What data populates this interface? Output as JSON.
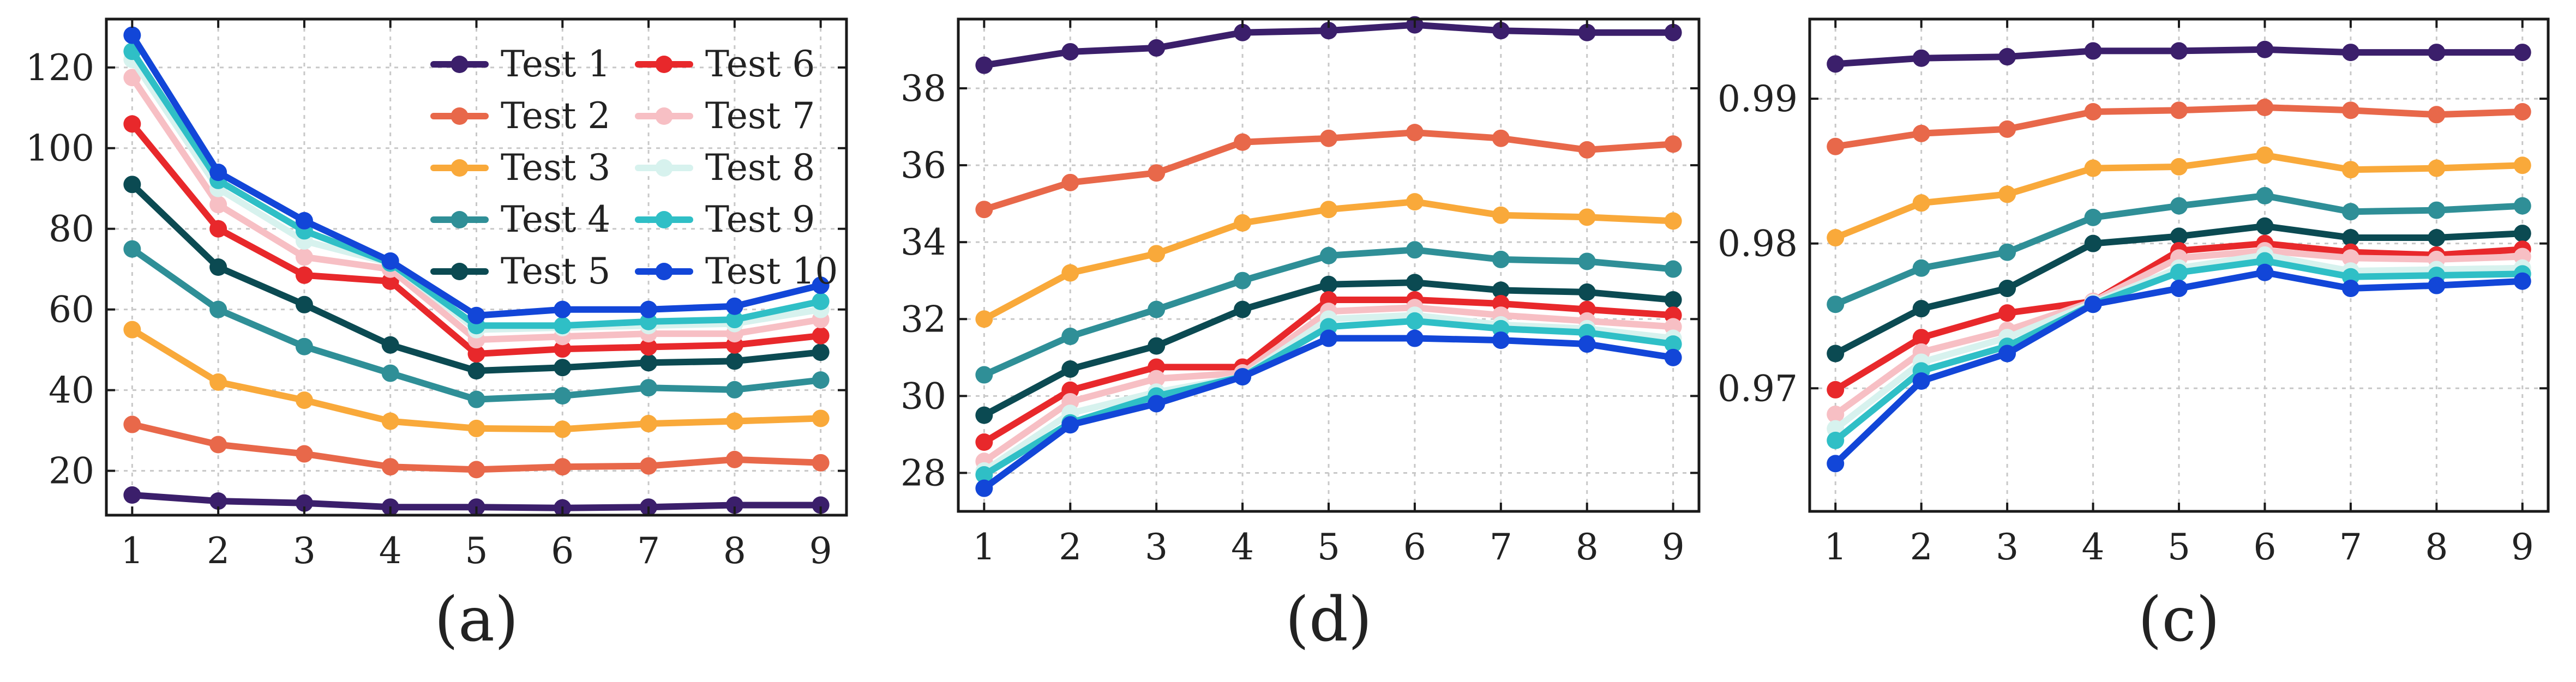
{
  "chart_data": [
    {
      "type": "line",
      "panel_label": "(a)",
      "x": [
        1,
        2,
        3,
        4,
        5,
        6,
        7,
        8,
        9
      ],
      "xticks": [
        "1",
        "2",
        "3",
        "4",
        "5",
        "6",
        "7",
        "8",
        "9"
      ],
      "xlim": [
        0.7,
        9.3
      ],
      "ylim": [
        9,
        132
      ],
      "yticks": [
        20,
        40,
        60,
        80,
        100,
        120
      ],
      "ytick_labels": [
        "20",
        "40",
        "60",
        "80",
        "100",
        "120"
      ],
      "ytick_side": "left",
      "grid": true,
      "legend": {
        "placement": "top-right",
        "columns": 2
      },
      "series": [
        {
          "name": "Test 1",
          "color": "#3b1f6b",
          "values": [
            14,
            12.5,
            12,
            11,
            11,
            10.8,
            11,
            11.5,
            11.5
          ]
        },
        {
          "name": "Test 2",
          "color": "#e8684a",
          "values": [
            31.5,
            26.5,
            24.2,
            21,
            20.3,
            21,
            21.2,
            22.8,
            22
          ]
        },
        {
          "name": "Test 3",
          "color": "#f9a93a",
          "values": [
            55,
            42,
            37.5,
            32.3,
            30.5,
            30.3,
            31.7,
            32.3,
            33
          ]
        },
        {
          "name": "Test 4",
          "color": "#2f8f97",
          "values": [
            75,
            60,
            50.8,
            44.2,
            37.7,
            38.6,
            40.6,
            40.1,
            42.5
          ]
        },
        {
          "name": "Test 5",
          "color": "#0b4a52",
          "values": [
            91,
            70.5,
            61.2,
            51.2,
            44.8,
            45.6,
            46.8,
            47.2,
            49.4
          ]
        },
        {
          "name": "Test 6",
          "color": "#e8282b",
          "values": [
            106,
            80,
            68.5,
            67,
            49,
            50.2,
            50.7,
            51.2,
            53.5
          ]
        },
        {
          "name": "Test 7",
          "color": "#f7bfc4",
          "values": [
            117.5,
            86,
            73,
            70,
            52.5,
            53.3,
            54,
            54,
            57.5
          ]
        },
        {
          "name": "Test 8",
          "color": "#d7f2ee",
          "values": [
            122,
            90,
            77,
            71.5,
            55,
            55.5,
            56,
            56.5,
            60
          ]
        },
        {
          "name": "Test 9",
          "color": "#2fbfc6",
          "values": [
            124,
            92,
            79.5,
            71.5,
            56,
            56,
            57,
            57.5,
            62
          ]
        },
        {
          "name": "Test 10",
          "color": "#1246d8",
          "values": [
            128,
            94,
            82,
            72,
            58.5,
            60,
            60,
            60.8,
            66
          ]
        }
      ]
    },
    {
      "type": "line",
      "panel_label": "(d)",
      "x": [
        1,
        2,
        3,
        4,
        5,
        6,
        7,
        8,
        9
      ],
      "xticks": [
        "1",
        "2",
        "3",
        "4",
        "5",
        "6",
        "7",
        "8",
        "9"
      ],
      "xlim": [
        0.7,
        9.3
      ],
      "ylim": [
        27,
        39.8
      ],
      "yticks": [
        28,
        30,
        32,
        34,
        36,
        38
      ],
      "ytick_labels": [
        "28",
        "30",
        "32",
        "34",
        "36",
        "38"
      ],
      "ytick_side": "left",
      "grid": true,
      "series": [
        {
          "name": "Test 1",
          "color": "#3b1f6b",
          "values": [
            38.6,
            38.95,
            39.05,
            39.45,
            39.5,
            39.65,
            39.5,
            39.45,
            39.45
          ]
        },
        {
          "name": "Test 2",
          "color": "#e8684a",
          "values": [
            34.85,
            35.55,
            35.8,
            36.6,
            36.7,
            36.85,
            36.7,
            36.4,
            36.55
          ]
        },
        {
          "name": "Test 3",
          "color": "#f9a93a",
          "values": [
            32,
            33.2,
            33.7,
            34.5,
            34.85,
            35.05,
            34.7,
            34.65,
            34.55
          ]
        },
        {
          "name": "Test 4",
          "color": "#2f8f97",
          "values": [
            30.55,
            31.55,
            32.25,
            33,
            33.65,
            33.8,
            33.55,
            33.5,
            33.3
          ]
        },
        {
          "name": "Test 5",
          "color": "#0b4a52",
          "values": [
            29.5,
            30.7,
            31.3,
            32.25,
            32.9,
            32.95,
            32.75,
            32.7,
            32.5
          ]
        },
        {
          "name": "Test 6",
          "color": "#e8282b",
          "values": [
            28.8,
            30.15,
            30.75,
            30.75,
            32.5,
            32.5,
            32.4,
            32.25,
            32.1
          ]
        },
        {
          "name": "Test 7",
          "color": "#f7bfc4",
          "values": [
            28.3,
            29.85,
            30.45,
            30.6,
            32.2,
            32.3,
            32.1,
            31.95,
            31.8
          ]
        },
        {
          "name": "Test 8",
          "color": "#d7f2ee",
          "values": [
            28.05,
            29.55,
            30.1,
            30.5,
            32.0,
            32.1,
            31.85,
            31.75,
            31.5
          ]
        },
        {
          "name": "Test 9",
          "color": "#2fbfc6",
          "values": [
            27.95,
            29.3,
            30.0,
            30.5,
            31.8,
            31.95,
            31.75,
            31.65,
            31.35
          ]
        },
        {
          "name": "Test 10",
          "color": "#1246d8",
          "values": [
            27.6,
            29.25,
            29.8,
            30.5,
            31.5,
            31.5,
            31.45,
            31.35,
            31.0
          ]
        }
      ]
    },
    {
      "type": "line",
      "panel_label": "(c)",
      "x": [
        1,
        2,
        3,
        4,
        5,
        6,
        7,
        8,
        9
      ],
      "xticks": [
        "1",
        "2",
        "3",
        "4",
        "5",
        "6",
        "7",
        "8",
        "9"
      ],
      "xlim": [
        0.7,
        9.3
      ],
      "ylim": [
        0.9615,
        0.9955
      ],
      "yticks": [
        0.97,
        0.98,
        0.99
      ],
      "ytick_labels": [
        "0.97",
        "0.98",
        "0.99"
      ],
      "ytick_side": "left",
      "grid": true,
      "series": [
        {
          "name": "Test 1",
          "color": "#3b1f6b",
          "values": [
            0.9924,
            0.9928,
            0.9929,
            0.9933,
            0.9933,
            0.9934,
            0.9932,
            0.9932,
            0.9932
          ]
        },
        {
          "name": "Test 2",
          "color": "#e8684a",
          "values": [
            0.9867,
            0.9876,
            0.9879,
            0.9891,
            0.9892,
            0.9894,
            0.9892,
            0.9889,
            0.9891
          ]
        },
        {
          "name": "Test 3",
          "color": "#f9a93a",
          "values": [
            0.9804,
            0.9828,
            0.9834,
            0.9852,
            0.9853,
            0.9861,
            0.9851,
            0.9852,
            0.9854
          ]
        },
        {
          "name": "Test 4",
          "color": "#2f8f97",
          "values": [
            0.9758,
            0.9783,
            0.9794,
            0.9818,
            0.9826,
            0.9833,
            0.9822,
            0.9823,
            0.9826
          ]
        },
        {
          "name": "Test 5",
          "color": "#0b4a52",
          "values": [
            0.9724,
            0.9755,
            0.9769,
            0.98,
            0.9805,
            0.9812,
            0.9804,
            0.9804,
            0.9807
          ]
        },
        {
          "name": "Test 6",
          "color": "#e8282b",
          "values": [
            0.9699,
            0.9735,
            0.9752,
            0.976,
            0.9795,
            0.98,
            0.9794,
            0.9792,
            0.9796
          ]
        },
        {
          "name": "Test 7",
          "color": "#f7bfc4",
          "values": [
            0.9682,
            0.9725,
            0.974,
            0.976,
            0.979,
            0.9795,
            0.979,
            0.9789,
            0.9791
          ]
        },
        {
          "name": "Test 8",
          "color": "#d7f2ee",
          "values": [
            0.9672,
            0.9718,
            0.9735,
            0.9759,
            0.9783,
            0.9792,
            0.9781,
            0.9782,
            0.9783
          ]
        },
        {
          "name": "Test 9",
          "color": "#2fbfc6",
          "values": [
            0.9664,
            0.9712,
            0.9729,
            0.9758,
            0.978,
            0.9788,
            0.9777,
            0.9778,
            0.9779
          ]
        },
        {
          "name": "Test 10",
          "color": "#1246d8",
          "values": [
            0.9648,
            0.9705,
            0.9724,
            0.9758,
            0.9769,
            0.978,
            0.9769,
            0.9771,
            0.9774
          ]
        }
      ]
    }
  ]
}
